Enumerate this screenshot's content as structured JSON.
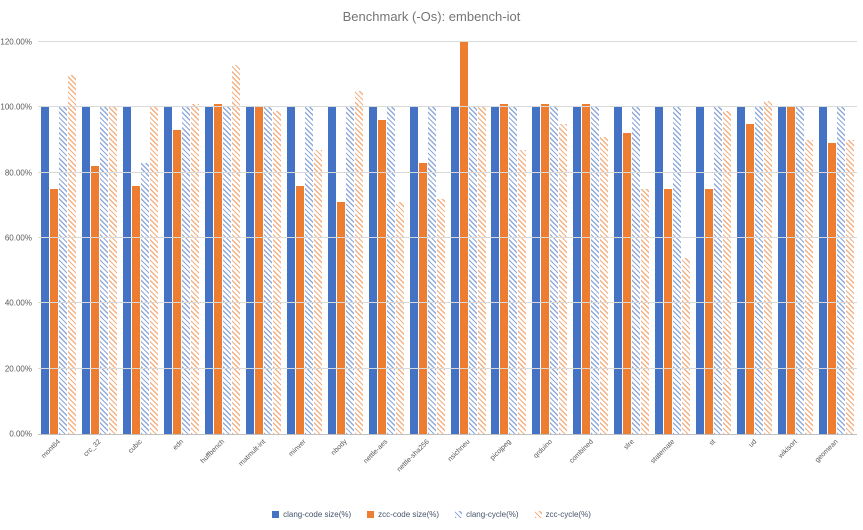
{
  "title": "Benchmark (-Os): embench-iot",
  "chart_data": {
    "type": "bar",
    "title": "Benchmark (-Os): embench-iot",
    "xlabel": "",
    "ylabel": "",
    "ylim": [
      0,
      120
    ],
    "grid": true,
    "legend_position": "bottom",
    "ytick_values": [
      0,
      20,
      40,
      60,
      80,
      100,
      120
    ],
    "ytick_labels": [
      "0.00%",
      "20.00%",
      "40.00%",
      "60.00%",
      "80.00%",
      "100.00%",
      "120.00%"
    ],
    "categories": [
      "mont64",
      "crc_32",
      "cubic",
      "edn",
      "huffbench",
      "matmult-int",
      "minver",
      "nbody",
      "nettle-aes",
      "nettle-sha256",
      "nsichneu",
      "picojpeg",
      "qrduino",
      "combined",
      "slre",
      "statemate",
      "st",
      "ud",
      "wikisort",
      "geomean"
    ],
    "series": [
      {
        "name": "clang-code size(%)",
        "color": "#4472C4",
        "pattern": "solid",
        "values": [
          100,
          100,
          100,
          100,
          100,
          100,
          100,
          100,
          100,
          100,
          100,
          100,
          100,
          100,
          100,
          100,
          100,
          100,
          100,
          100
        ]
      },
      {
        "name": "zcc-code size(%)",
        "color": "#ED7D31",
        "pattern": "solid",
        "values": [
          75,
          82,
          76,
          93,
          101,
          100,
          76,
          71,
          96,
          83,
          120,
          101,
          101,
          101,
          92,
          75,
          75,
          95,
          100,
          89
        ]
      },
      {
        "name": "clang-cycle(%)",
        "color": "#8FAADC",
        "pattern": "hatch",
        "values": [
          100,
          100,
          83,
          100,
          100,
          100,
          100,
          100,
          100,
          100,
          100,
          100,
          100,
          100,
          100,
          100,
          100,
          100,
          100,
          100
        ]
      },
      {
        "name": "zcc-cycle(%)",
        "color": "#F4B183",
        "pattern": "hatch",
        "values": [
          110,
          100,
          100,
          101,
          113,
          99,
          87,
          105,
          71,
          72,
          100,
          87,
          95,
          91,
          75,
          54,
          99,
          102,
          90,
          90
        ]
      }
    ]
  }
}
